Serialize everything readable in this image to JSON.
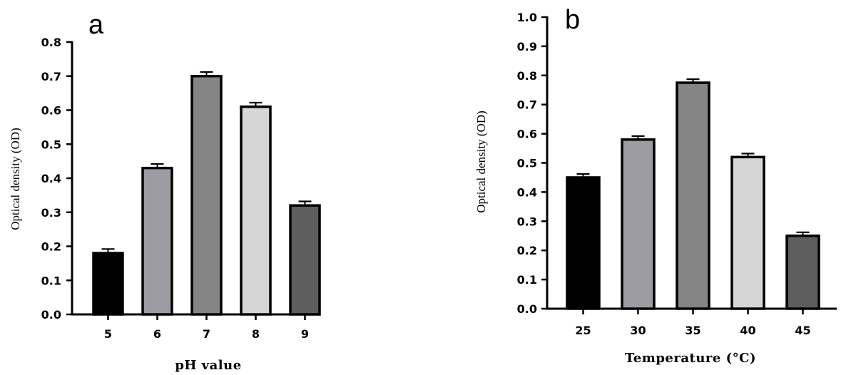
{
  "chart_data": [
    {
      "panel_label": "a",
      "type": "bar",
      "categories": [
        "5",
        "6",
        "7",
        "8",
        "9"
      ],
      "values": [
        0.18,
        0.43,
        0.7,
        0.61,
        0.32
      ],
      "errors": [
        0.012,
        0.012,
        0.012,
        0.012,
        0.012
      ],
      "bar_colors": [
        "#000000",
        "#9c9ca2",
        "#858585",
        "#d6d6d6",
        "#5e5e5e"
      ],
      "title": "",
      "xlabel": "pH value",
      "ylabel": "Optical density (OD)",
      "ylim": [
        0,
        0.8
      ],
      "yticks": [
        "0.0",
        "0.1",
        "0.2",
        "0.3",
        "0.4",
        "0.5",
        "0.6",
        "0.7",
        "0.8"
      ],
      "grid": false
    },
    {
      "panel_label": "b",
      "type": "bar",
      "categories": [
        "25",
        "30",
        "35",
        "40",
        "45"
      ],
      "values": [
        0.45,
        0.58,
        0.775,
        0.52,
        0.25
      ],
      "errors": [
        0.012,
        0.012,
        0.012,
        0.012,
        0.012
      ],
      "bar_colors": [
        "#000000",
        "#9c9ca2",
        "#858585",
        "#d6d6d6",
        "#5e5e5e"
      ],
      "title": "",
      "xlabel": "Temperature (°C)",
      "ylabel": "Optical density (OD)",
      "ylim": [
        0,
        1.0
      ],
      "yticks": [
        "0.0",
        "0.1",
        "0.2",
        "0.3",
        "0.4",
        "0.5",
        "0.6",
        "0.7",
        "0.8",
        "0.9",
        "1.0"
      ],
      "grid": false
    }
  ]
}
